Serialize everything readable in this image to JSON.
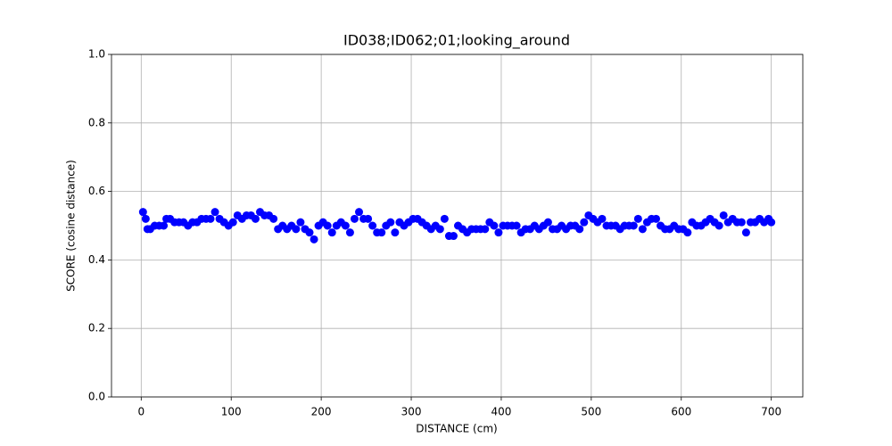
{
  "chart_data": {
    "type": "scatter",
    "title": "ID038;ID062;01;looking_around",
    "x_label": "DISTANCE (cm)",
    "y_label": "SCORE (cosine distance)",
    "xlim": [
      -33,
      735
    ],
    "ylim": [
      0,
      1
    ],
    "xticks": [
      0,
      100,
      200,
      300,
      400,
      500,
      600,
      700
    ],
    "yticks": [
      {
        "value": 0,
        "label": "0.0"
      },
      0.2,
      0.4,
      0.6,
      0.8,
      {
        "value": 1,
        "label": "1.0"
      }
    ],
    "grid": true,
    "series": [
      {
        "color": "#0000ff",
        "x": [
          2,
          5,
          7,
          10,
          15,
          20,
          25,
          28,
          32,
          37,
          42,
          47,
          52,
          57,
          62,
          67,
          72,
          77,
          82,
          87,
          92,
          97,
          102,
          107,
          112,
          117,
          122,
          127,
          132,
          137,
          142,
          147,
          152,
          157,
          162,
          167,
          172,
          177,
          182,
          187,
          192,
          197,
          202,
          207,
          212,
          217,
          222,
          227,
          232,
          237,
          242,
          247,
          252,
          257,
          262,
          267,
          272,
          277,
          282,
          287,
          292,
          297,
          302,
          307,
          312,
          317,
          322,
          327,
          332,
          337,
          342,
          347,
          352,
          357,
          362,
          367,
          372,
          377,
          382,
          387,
          392,
          397,
          402,
          407,
          412,
          417,
          422,
          427,
          432,
          437,
          442,
          447,
          452,
          457,
          462,
          467,
          472,
          477,
          482,
          487,
          492,
          497,
          502,
          507,
          512,
          517,
          522,
          527,
          532,
          537,
          542,
          547,
          552,
          557,
          562,
          567,
          572,
          577,
          582,
          587,
          592,
          597,
          602,
          607,
          612,
          617,
          622,
          627,
          632,
          637,
          642,
          647,
          652,
          657,
          662,
          667,
          672,
          677,
          682,
          687,
          692,
          697,
          700
        ],
        "values": [
          0.54,
          0.52,
          0.49,
          0.49,
          0.5,
          0.5,
          0.5,
          0.52,
          0.52,
          0.51,
          0.51,
          0.51,
          0.5,
          0.51,
          0.51,
          0.52,
          0.52,
          0.52,
          0.54,
          0.52,
          0.51,
          0.5,
          0.51,
          0.53,
          0.52,
          0.53,
          0.53,
          0.52,
          0.54,
          0.53,
          0.53,
          0.52,
          0.49,
          0.5,
          0.49,
          0.5,
          0.49,
          0.51,
          0.49,
          0.48,
          0.46,
          0.5,
          0.51,
          0.5,
          0.48,
          0.5,
          0.51,
          0.5,
          0.48,
          0.52,
          0.54,
          0.52,
          0.52,
          0.5,
          0.48,
          0.48,
          0.5,
          0.51,
          0.48,
          0.51,
          0.5,
          0.51,
          0.52,
          0.52,
          0.51,
          0.5,
          0.49,
          0.5,
          0.49,
          0.52,
          0.47,
          0.47,
          0.5,
          0.49,
          0.48,
          0.49,
          0.49,
          0.49,
          0.49,
          0.51,
          0.5,
          0.48,
          0.5,
          0.5,
          0.5,
          0.5,
          0.48,
          0.49,
          0.49,
          0.5,
          0.49,
          0.5,
          0.51,
          0.49,
          0.49,
          0.5,
          0.49,
          0.5,
          0.5,
          0.49,
          0.51,
          0.53,
          0.52,
          0.51,
          0.52,
          0.5,
          0.5,
          0.5,
          0.49,
          0.5,
          0.5,
          0.5,
          0.52,
          0.49,
          0.51,
          0.52,
          0.52,
          0.5,
          0.49,
          0.49,
          0.5,
          0.49,
          0.49,
          0.48,
          0.51,
          0.5,
          0.5,
          0.51,
          0.52,
          0.51,
          0.5,
          0.53,
          0.51,
          0.52,
          0.51,
          0.51,
          0.48,
          0.51,
          0.51,
          0.52,
          0.51,
          0.52,
          0.51
        ]
      }
    ]
  }
}
